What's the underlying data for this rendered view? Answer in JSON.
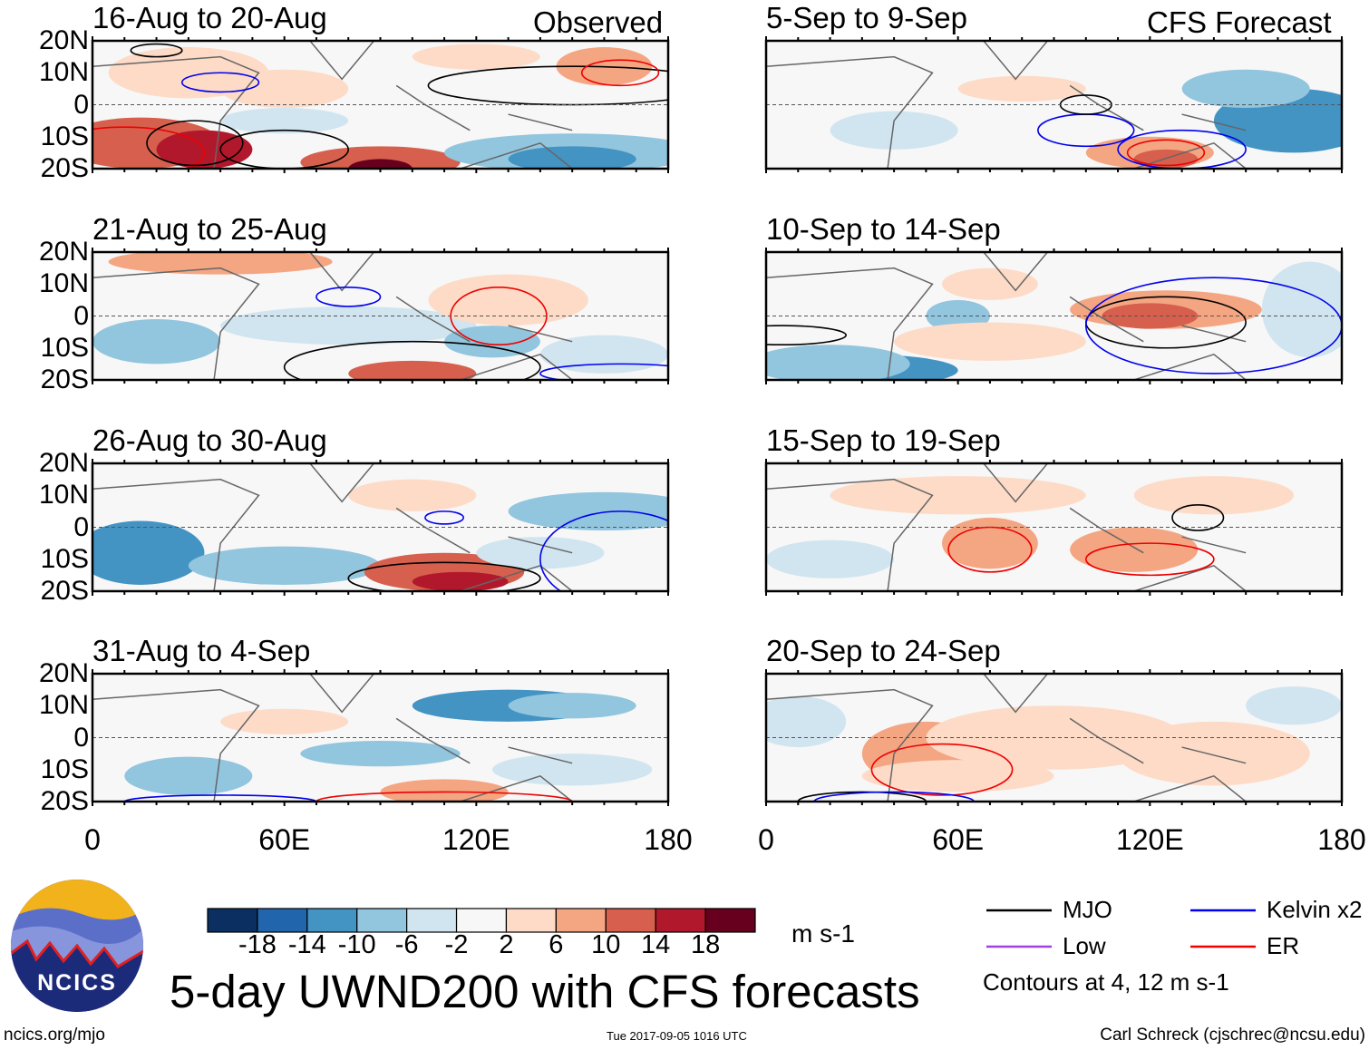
{
  "chart_data": {
    "type": "heatmap",
    "title": "5-day UWND200 with CFS forecasts",
    "units": "m s-1",
    "contour_note": "Contours at 4, 12 m s-1",
    "columns": [
      {
        "label": "Observed",
        "panels": [
          "16-Aug to 20-Aug",
          "21-Aug to 25-Aug",
          "26-Aug to 30-Aug",
          "31-Aug to 4-Sep"
        ]
      },
      {
        "label": "CFS Forecast",
        "panels": [
          "5-Sep to 9-Sep",
          "10-Sep to 14-Sep",
          "15-Sep to 19-Sep",
          "20-Sep to 24-Sep"
        ]
      }
    ],
    "y_ticks": [
      "20N",
      "10N",
      "0",
      "10S",
      "20S"
    ],
    "x_ticks": [
      "0",
      "60E",
      "120E",
      "180"
    ],
    "xlim": [
      0,
      180
    ],
    "ylim": [
      -20,
      20
    ],
    "colorbar": {
      "labels": [
        "-18",
        "-14",
        "-10",
        "-6",
        "-2",
        "2",
        "6",
        "10",
        "14",
        "18"
      ],
      "colors": [
        "#0a2f60",
        "#2166ac",
        "#4393c3",
        "#92c5de",
        "#d1e5f0",
        "#f7f7f7",
        "#fddbc7",
        "#f4a582",
        "#d6604d",
        "#b2182b",
        "#67001f"
      ]
    },
    "legend": [
      {
        "label": "MJO",
        "color": "#000000"
      },
      {
        "label": "Low",
        "color": "#a040e0"
      },
      {
        "label": "Kelvin x2",
        "color": "#0000ee"
      },
      {
        "label": "ER",
        "color": "#ee0000"
      }
    ]
  },
  "logo": {
    "text": "NCICS"
  },
  "footer": {
    "left": "ncics.org/mjo",
    "center": "Tue 2017-09-05 1016 UTC",
    "right": "Carl Schreck (cjschrec@ncsu.edu)"
  }
}
